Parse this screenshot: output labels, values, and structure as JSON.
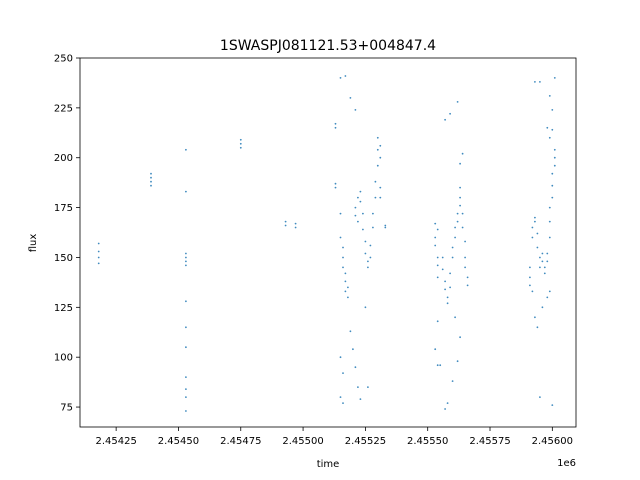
{
  "chart_data": {
    "type": "scatter",
    "title": "1SWASPJ081121.53+004847.4",
    "xlabel": "time",
    "ylabel": "flux",
    "x_offset_label": "1e6",
    "xlim": [
      2.454105,
      2.456095
    ],
    "ylim": [
      65,
      250
    ],
    "x_ticks": [
      2.45425,
      2.4545,
      2.45475,
      2.455,
      2.45525,
      2.4555,
      2.45575,
      2.456
    ],
    "x_tick_labels": [
      "2.45425",
      "2.45450",
      "2.45475",
      "2.45500",
      "2.45525",
      "2.45550",
      "2.45575",
      "2.45600"
    ],
    "y_ticks": [
      75,
      100,
      125,
      150,
      175,
      200,
      225,
      250
    ],
    "y_tick_labels": [
      "75",
      "100",
      "125",
      "150",
      "175",
      "200",
      "225",
      "250"
    ],
    "grid": false,
    "marker_color": "#1f77b4",
    "series": [
      {
        "values": [
          [
            2.45418,
            153
          ],
          [
            2.45418,
            150
          ],
          [
            2.45418,
            157
          ],
          [
            2.45418,
            147
          ],
          [
            2.45439,
            188
          ],
          [
            2.45439,
            190
          ],
          [
            2.45439,
            192
          ],
          [
            2.45439,
            186
          ],
          [
            2.45453,
            150
          ],
          [
            2.45453,
            148
          ],
          [
            2.45453,
            152
          ],
          [
            2.45453,
            146
          ],
          [
            2.45453,
            204
          ],
          [
            2.45453,
            183
          ],
          [
            2.45453,
            128
          ],
          [
            2.45453,
            115
          ],
          [
            2.45453,
            105
          ],
          [
            2.45453,
            90
          ],
          [
            2.45453,
            84
          ],
          [
            2.45453,
            80
          ],
          [
            2.45453,
            73
          ],
          [
            2.45475,
            207
          ],
          [
            2.45475,
            205
          ],
          [
            2.45475,
            209
          ],
          [
            2.45493,
            168
          ],
          [
            2.45493,
            166
          ],
          [
            2.45497,
            165
          ],
          [
            2.45497,
            167
          ],
          [
            2.45513,
            217
          ],
          [
            2.45513,
            215
          ],
          [
            2.45513,
            187
          ],
          [
            2.45513,
            185
          ],
          [
            2.45515,
            172
          ],
          [
            2.45515,
            160
          ],
          [
            2.45516,
            150
          ],
          [
            2.45516,
            145
          ],
          [
            2.45517,
            138
          ],
          [
            2.45517,
            133
          ],
          [
            2.45518,
            130
          ],
          [
            2.45518,
            135
          ],
          [
            2.45517,
            142
          ],
          [
            2.45516,
            155
          ],
          [
            2.45515,
            240
          ],
          [
            2.45517,
            241
          ],
          [
            2.45515,
            100
          ],
          [
            2.45516,
            92
          ],
          [
            2.45515,
            80
          ],
          [
            2.45516,
            77
          ],
          [
            2.45521,
            175
          ],
          [
            2.45521,
            171
          ],
          [
            2.45522,
            168
          ],
          [
            2.45522,
            180
          ],
          [
            2.45523,
            183
          ],
          [
            2.45523,
            178
          ],
          [
            2.45524,
            172
          ],
          [
            2.45524,
            164
          ],
          [
            2.45525,
            158
          ],
          [
            2.45525,
            152
          ],
          [
            2.45526,
            148
          ],
          [
            2.45526,
            145
          ],
          [
            2.45527,
            150
          ],
          [
            2.45527,
            156
          ],
          [
            2.45528,
            165
          ],
          [
            2.45528,
            172
          ],
          [
            2.45529,
            180
          ],
          [
            2.45529,
            188
          ],
          [
            2.4553,
            196
          ],
          [
            2.4553,
            204
          ],
          [
            2.45531,
            206
          ],
          [
            2.45531,
            200
          ],
          [
            2.4553,
            210
          ],
          [
            2.45519,
            113
          ],
          [
            2.4552,
            104
          ],
          [
            2.45521,
            95
          ],
          [
            2.45522,
            85
          ],
          [
            2.45523,
            79
          ],
          [
            2.45525,
            125
          ],
          [
            2.45526,
            85
          ],
          [
            2.45519,
            230
          ],
          [
            2.45521,
            224
          ],
          [
            2.45531,
            185
          ],
          [
            2.45531,
            180
          ],
          [
            2.45533,
            165
          ],
          [
            2.45533,
            166
          ],
          [
            2.45553,
            160
          ],
          [
            2.45553,
            156
          ],
          [
            2.45554,
            150
          ],
          [
            2.45554,
            146
          ],
          [
            2.45554,
            164
          ],
          [
            2.45553,
            167
          ],
          [
            2.45554,
            140
          ],
          [
            2.45556,
            150
          ],
          [
            2.45556,
            144
          ],
          [
            2.45557,
            138
          ],
          [
            2.45557,
            134
          ],
          [
            2.45558,
            130
          ],
          [
            2.45558,
            127
          ],
          [
            2.45559,
            135
          ],
          [
            2.45559,
            142
          ],
          [
            2.4556,
            150
          ],
          [
            2.4556,
            155
          ],
          [
            2.45561,
            160
          ],
          [
            2.45561,
            165
          ],
          [
            2.45562,
            168
          ],
          [
            2.45562,
            172
          ],
          [
            2.45563,
            176
          ],
          [
            2.45563,
            180
          ],
          [
            2.45563,
            185
          ],
          [
            2.45564,
            172
          ],
          [
            2.45564,
            165
          ],
          [
            2.45565,
            158
          ],
          [
            2.45565,
            150
          ],
          [
            2.45565,
            145
          ],
          [
            2.45566,
            140
          ],
          [
            2.45566,
            136
          ],
          [
            2.45553,
            104
          ],
          [
            2.45554,
            118
          ],
          [
            2.45554,
            96
          ],
          [
            2.45555,
            96
          ],
          [
            2.45557,
            74
          ],
          [
            2.45558,
            77
          ],
          [
            2.4556,
            88
          ],
          [
            2.45562,
            98
          ],
          [
            2.45563,
            110
          ],
          [
            2.45561,
            120
          ],
          [
            2.45557,
            219
          ],
          [
            2.45559,
            222
          ],
          [
            2.45562,
            228
          ],
          [
            2.45564,
            202
          ],
          [
            2.45563,
            197
          ],
          [
            2.45591,
            145
          ],
          [
            2.45591,
            140
          ],
          [
            2.45591,
            136
          ],
          [
            2.45592,
            160
          ],
          [
            2.45592,
            165
          ],
          [
            2.45593,
            170
          ],
          [
            2.45593,
            168
          ],
          [
            2.45594,
            162
          ],
          [
            2.45594,
            155
          ],
          [
            2.45595,
            150
          ],
          [
            2.45595,
            145
          ],
          [
            2.45596,
            148
          ],
          [
            2.45596,
            152
          ],
          [
            2.45597,
            142
          ],
          [
            2.45597,
            145
          ],
          [
            2.45598,
            148
          ],
          [
            2.45598,
            152
          ],
          [
            2.45599,
            160
          ],
          [
            2.45599,
            168
          ],
          [
            2.45599,
            175
          ],
          [
            2.456,
            180
          ],
          [
            2.456,
            186
          ],
          [
            2.456,
            192
          ],
          [
            2.45601,
            196
          ],
          [
            2.45601,
            200
          ],
          [
            2.45601,
            204
          ],
          [
            2.45593,
            238
          ],
          [
            2.45595,
            238
          ],
          [
            2.45599,
            231
          ],
          [
            2.456,
            224
          ],
          [
            2.456,
            214
          ],
          [
            2.45601,
            240
          ],
          [
            2.45598,
            215
          ],
          [
            2.45599,
            210
          ],
          [
            2.45593,
            120
          ],
          [
            2.45594,
            115
          ],
          [
            2.45595,
            80
          ],
          [
            2.45596,
            125
          ],
          [
            2.45592,
            133
          ],
          [
            2.456,
            76
          ],
          [
            2.45599,
            133
          ],
          [
            2.45598,
            130
          ]
        ]
      }
    ]
  }
}
